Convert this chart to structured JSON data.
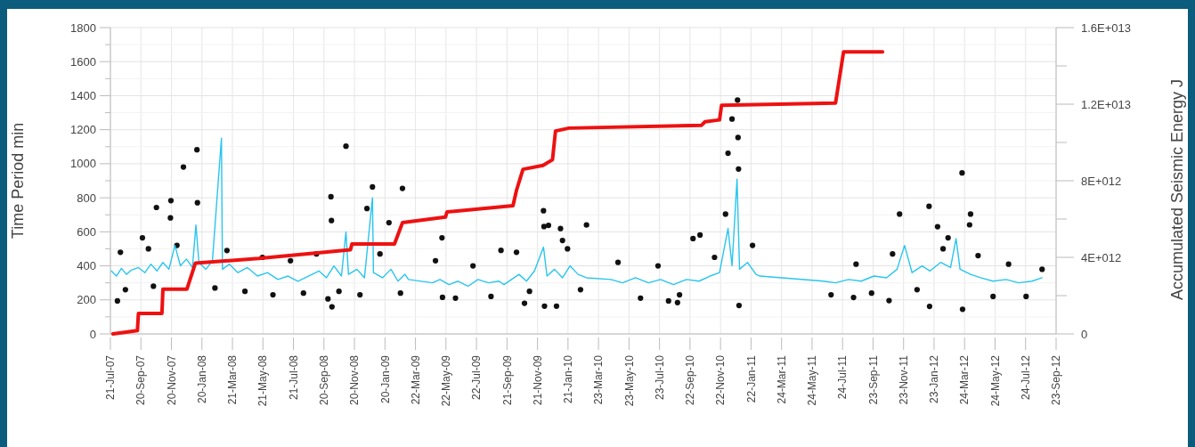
{
  "chart_data": {
    "type": "line",
    "ylabel": "Time Period min",
    "y2label": "Accumulated Seismic Energy J",
    "grid": true,
    "xlim": [
      "2007-07-21",
      "2012-09-23"
    ],
    "xticks": [
      {
        "value": "2007-07-21",
        "label": "21-Jul-07"
      },
      {
        "value": "2007-09-20",
        "label": "20-Sep-07"
      },
      {
        "value": "2007-11-20",
        "label": "20-Nov-07"
      },
      {
        "value": "2008-01-20",
        "label": "20-Jan-08"
      },
      {
        "value": "2008-03-21",
        "label": "21-Mar-08"
      },
      {
        "value": "2008-05-21",
        "label": "21-May-08"
      },
      {
        "value": "2008-07-21",
        "label": "21-Jul-08"
      },
      {
        "value": "2008-09-20",
        "label": "20-Sep-08"
      },
      {
        "value": "2008-11-20",
        "label": "20-Nov-08"
      },
      {
        "value": "2009-01-20",
        "label": "20-Jan-09"
      },
      {
        "value": "2009-03-22",
        "label": "22-Mar-09"
      },
      {
        "value": "2009-05-22",
        "label": "22-May-09"
      },
      {
        "value": "2009-07-22",
        "label": "22-Jul-09"
      },
      {
        "value": "2009-09-21",
        "label": "21-Sep-09"
      },
      {
        "value": "2009-11-21",
        "label": "21-Nov-09"
      },
      {
        "value": "2010-01-21",
        "label": "21-Jan-10"
      },
      {
        "value": "2010-03-23",
        "label": "23-Mar-10"
      },
      {
        "value": "2010-05-23",
        "label": "23-May-10"
      },
      {
        "value": "2010-07-23",
        "label": "23-Jul-10"
      },
      {
        "value": "2010-09-22",
        "label": "22-Sep-10"
      },
      {
        "value": "2010-11-22",
        "label": "22-Nov-10"
      },
      {
        "value": "2011-01-22",
        "label": "22-Jan-11"
      },
      {
        "value": "2011-03-24",
        "label": "24-Mar-11"
      },
      {
        "value": "2011-05-24",
        "label": "24-May-11"
      },
      {
        "value": "2011-07-24",
        "label": "24-Jul-11"
      },
      {
        "value": "2011-09-23",
        "label": "23-Sep-11"
      },
      {
        "value": "2011-11-23",
        "label": "23-Nov-11"
      },
      {
        "value": "2012-01-23",
        "label": "23-Jan-12"
      },
      {
        "value": "2012-03-24",
        "label": "24-Mar-12"
      },
      {
        "value": "2012-05-24",
        "label": "24-May-12"
      },
      {
        "value": "2012-07-24",
        "label": "24-Jul-12"
      },
      {
        "value": "2012-09-23",
        "label": "23-Sep-12"
      }
    ],
    "ylim": [
      0,
      1800
    ],
    "yticks": [
      0,
      {
        "value": 100,
        "label": null
      },
      200,
      {
        "value": 300,
        "label": null
      },
      400,
      {
        "value": 500,
        "label": null
      },
      600,
      {
        "value": 700,
        "label": null
      },
      800,
      {
        "value": 900,
        "label": null
      },
      1000,
      {
        "value": 1100,
        "label": null
      },
      1200,
      {
        "value": 1300,
        "label": null
      },
      1400,
      {
        "value": 1500,
        "label": null
      },
      1600,
      {
        "value": 1700,
        "label": null
      },
      1800
    ],
    "y2lim": [
      0,
      16000000000000
    ],
    "y2ticks": [
      {
        "value": 0,
        "label": "0"
      },
      {
        "value": 2000000000000,
        "label": null
      },
      {
        "value": 4000000000000,
        "label": "4E+012"
      },
      {
        "value": 6000000000000,
        "label": null
      },
      {
        "value": 8000000000000,
        "label": "8E+012"
      },
      {
        "value": 10000000000000,
        "label": null
      },
      {
        "value": 12000000000000,
        "label": "1.2E+013"
      },
      {
        "value": 14000000000000,
        "label": null
      },
      {
        "value": 16000000000000,
        "label": "1.6E+013"
      }
    ],
    "series": [
      {
        "type": "scatter",
        "color": "#111111",
        "marker": "circle",
        "x": [
          "2007-08-04",
          "2007-09-23",
          "2007-10-21",
          "2007-11-19",
          "2007-11-18",
          "2007-12-14",
          "2008-01-10",
          "2008-01-11",
          "2008-10-04",
          "2008-10-05",
          "2008-09-28",
          "2008-10-06",
          "2008-11-03",
          "2008-12-15",
          "2008-12-26",
          "2009-01-28",
          "2009-02-24",
          "2009-05-14",
          "2009-05-15",
          "2009-09-09",
          "2009-10-26",
          "2009-12-03",
          "2009-12-04",
          "2009-12-05",
          "2009-12-13",
          "2009-12-29",
          "2010-01-06",
          "2010-01-10",
          "2010-02-27",
          "2010-12-07",
          "2010-12-15",
          "2010-12-26",
          "2010-12-27",
          "2010-12-28",
          "2010-12-02",
          "2010-09-28",
          "2010-10-12",
          "2010-08-10",
          "2010-08-28",
          "2010-12-29",
          "2011-11-15",
          "2012-01-13",
          "2012-01-30",
          "2012-03-19",
          "2012-04-05",
          "2012-04-03",
          "2012-01-14",
          "2012-03-20",
          "2011-08-15",
          "2011-10-25",
          "2012-02-20",
          "2007-08-10",
          "2007-08-20",
          "2007-10-05",
          "2007-10-15",
          "2007-12-01",
          "2008-02-15",
          "2008-03-10",
          "2008-04-15",
          "2008-05-20",
          "2008-06-10",
          "2008-07-15",
          "2008-08-10",
          "2008-09-05",
          "2008-10-20",
          "2008-12-01",
          "2009-01-10",
          "2009-02-20",
          "2009-05-01",
          "2009-06-10",
          "2009-07-15",
          "2009-08-20",
          "2009-10-10",
          "2009-11-05",
          "2010-01-20",
          "2010-02-15",
          "2010-05-01",
          "2010-06-15",
          "2010-07-20",
          "2010-09-01",
          "2010-11-10",
          "2011-01-25",
          "2011-07-01",
          "2011-08-20",
          "2011-09-20",
          "2011-11-01",
          "2011-12-20",
          "2012-02-10",
          "2012-04-20",
          "2012-05-20",
          "2012-06-20",
          "2012-07-25",
          "2012-08-26"
        ],
        "values": [
          194,
          565,
          743,
          783,
          682,
          981,
          1082,
          771,
          806,
          666,
          206,
          159,
          1103,
          737,
          864,
          654,
          855,
          565,
          215,
          491,
          180,
          724,
          631,
          163,
          638,
          163,
          619,
          549,
          640,
          1062,
          1263,
          1374,
          1154,
          969,
          704,
          560,
          581,
          194,
          184,
          167,
          704,
          750,
          630,
          946,
          704,
          641,
          162,
          145,
          214,
          196,
          565,
          480,
          260,
          500,
          280,
          520,
          270,
          490,
          250,
          450,
          230,
          430,
          240,
          470,
          250,
          230,
          470,
          240,
          430,
          210,
          400,
          220,
          480,
          250,
          500,
          260,
          420,
          210,
          400,
          230,
          450,
          520,
          230,
          410,
          240,
          470,
          260,
          500,
          460,
          220,
          410,
          220,
          380
        ]
      },
      {
        "color": "#29c5ef",
        "marker": "none",
        "x": [
          "2007-07-23",
          "2007-08-02",
          "2007-08-12",
          "2007-08-22",
          "2007-09-01",
          "2007-09-15",
          "2007-09-28",
          "2007-10-10",
          "2007-10-22",
          "2007-11-03",
          "2007-11-15",
          "2007-11-27",
          "2007-12-08",
          "2007-12-20",
          "2008-01-01",
          "2008-01-08",
          "2008-01-14",
          "2008-01-28",
          "2008-02-10",
          "2008-02-28",
          "2008-03-01",
          "2008-03-15",
          "2008-04-01",
          "2008-04-20",
          "2008-05-10",
          "2008-05-30",
          "2008-06-20",
          "2008-07-10",
          "2008-07-30",
          "2008-08-20",
          "2008-09-10",
          "2008-09-25",
          "2008-10-10",
          "2008-10-25",
          "2008-11-03",
          "2008-11-08",
          "2008-11-25",
          "2008-12-10",
          "2008-12-26",
          "2008-12-28",
          "2009-01-15",
          "2009-02-01",
          "2009-02-15",
          "2009-03-01",
          "2009-03-08",
          "2009-04-25",
          "2009-05-10",
          "2009-05-28",
          "2009-06-15",
          "2009-07-05",
          "2009-07-25",
          "2009-08-15",
          "2009-09-05",
          "2009-09-15",
          "2009-09-30",
          "2009-10-15",
          "2009-10-30",
          "2009-11-15",
          "2009-12-03",
          "2009-12-10",
          "2009-12-25",
          "2010-01-10",
          "2010-01-25",
          "2010-02-10",
          "2010-02-27",
          "2010-04-17",
          "2010-05-10",
          "2010-06-05",
          "2010-07-01",
          "2010-07-25",
          "2010-08-20",
          "2010-09-15",
          "2010-10-10",
          "2010-11-01",
          "2010-11-20",
          "2010-12-07",
          "2010-12-15",
          "2010-12-25",
          "2010-12-30",
          "2011-01-15",
          "2011-02-01",
          "2011-02-09",
          "2011-06-16",
          "2011-07-10",
          "2011-08-05",
          "2011-08-30",
          "2011-09-25",
          "2011-10-20",
          "2011-11-10",
          "2011-11-25",
          "2011-12-10",
          "2011-12-30",
          "2012-01-15",
          "2012-02-05",
          "2012-02-25",
          "2012-03-07",
          "2012-03-15",
          "2012-04-05",
          "2012-04-25",
          "2012-05-20",
          "2012-06-15",
          "2012-07-10",
          "2012-08-06",
          "2012-08-26"
        ],
        "values": [
          370,
          340,
          385,
          350,
          375,
          390,
          360,
          410,
          370,
          420,
          380,
          520,
          400,
          440,
          390,
          640,
          420,
          380,
          430,
          1150,
          380,
          410,
          360,
          390,
          340,
          360,
          320,
          340,
          310,
          340,
          370,
          330,
          400,
          340,
          600,
          350,
          380,
          330,
          800,
          360,
          330,
          380,
          310,
          350,
          320,
          300,
          320,
          290,
          310,
          280,
          320,
          300,
          310,
          290,
          320,
          350,
          310,
          370,
          510,
          340,
          380,
          330,
          400,
          350,
          330,
          320,
          300,
          330,
          300,
          320,
          290,
          320,
          310,
          340,
          360,
          620,
          400,
          910,
          380,
          420,
          350,
          340,
          310,
          300,
          320,
          310,
          340,
          330,
          380,
          520,
          360,
          400,
          370,
          420,
          390,
          560,
          380,
          350,
          330,
          310,
          320,
          300,
          310,
          330
        ]
      },
      {
        "axis": "y2",
        "color": "#ee1111",
        "marker": "none",
        "x": [
          "2007-07-26",
          "2007-09-13",
          "2007-09-15",
          "2007-11-01",
          "2007-11-03",
          "2007-12-21",
          "2008-01-07",
          "2008-05-12",
          "2008-11-12",
          "2008-11-15",
          "2009-02-08",
          "2009-02-24",
          "2009-05-21",
          "2009-05-24",
          "2009-10-03",
          "2009-10-10",
          "2009-10-23",
          "2009-12-02",
          "2009-12-21",
          "2009-12-27",
          "2010-01-23",
          "2010-10-15",
          "2010-10-22",
          "2010-11-20",
          "2010-11-24",
          "2011-07-10",
          "2011-07-26",
          "2011-10-12"
        ],
        "values": [
          0,
          170000000000,
          1070000000000,
          1070000000000,
          2340000000000,
          2340000000000,
          3700000000000,
          3940000000000,
          4400000000000,
          4700000000000,
          4700000000000,
          5810000000000,
          6100000000000,
          6370000000000,
          6700000000000,
          7500000000000,
          8600000000000,
          8800000000000,
          9100000000000,
          10600000000000,
          10750000000000,
          10900000000000,
          11080000000000,
          11180000000000,
          11940000000000,
          12060000000000,
          14730000000000,
          14730000000000
        ]
      }
    ]
  }
}
